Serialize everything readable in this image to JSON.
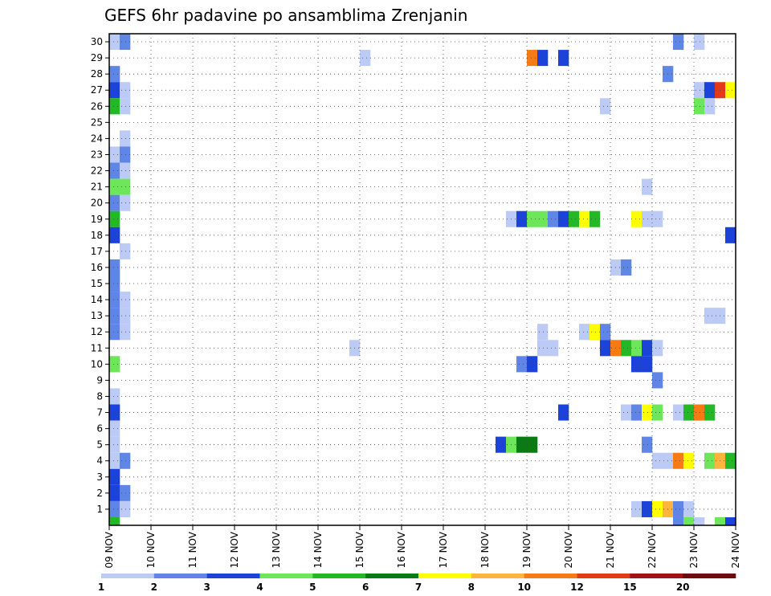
{
  "chart_data": {
    "type": "heatmap",
    "title": "GEFS 6hr padavine po ansamblima Zrenjanin",
    "xlabel": "",
    "ylabel": "",
    "x_tick_labels": [
      "09 NOV",
      "10 NOV",
      "11 NOV",
      "12 NOV",
      "13 NOV",
      "14 NOV",
      "15 NOV",
      "16 NOV",
      "17 NOV",
      "18 NOV",
      "19 NOV",
      "20 NOV",
      "21 NOV",
      "22 NOV",
      "23 NOV",
      "24 NOV"
    ],
    "y_tick_labels": [
      "1",
      "2",
      "3",
      "4",
      "5",
      "6",
      "7",
      "8",
      "9",
      "10",
      "11",
      "12",
      "13",
      "14",
      "15",
      "16",
      "17",
      "18",
      "19",
      "20",
      "21",
      "22",
      "23",
      "24",
      "25",
      "26",
      "27",
      "28",
      "29",
      "30"
    ],
    "x_unit": "6hr step since 09 NOV",
    "xlim": [
      0,
      60
    ],
    "ylim": [
      0,
      30
    ],
    "grid": true,
    "colorbar": {
      "levels": [
        "1",
        "2",
        "3",
        "4",
        "5",
        "6",
        "7",
        "8",
        "10",
        "12",
        "15",
        "20"
      ],
      "colors": [
        "#bccbf5",
        "#5f86e6",
        "#1c43d9",
        "#6ee65a",
        "#25b826",
        "#0a7a12",
        "#ffff00",
        "#ffb43c",
        "#f77b14",
        "#e23a16",
        "#a31212",
        "#6b0b0b"
      ]
    },
    "cells": [
      {
        "x": 0,
        "y": 30,
        "c": 0
      },
      {
        "x": 1,
        "y": 30,
        "c": 1
      },
      {
        "x": 54,
        "y": 30,
        "c": 1
      },
      {
        "x": 56,
        "y": 30,
        "c": 0
      },
      {
        "x": 24,
        "y": 29,
        "c": 0
      },
      {
        "x": 40,
        "y": 29,
        "c": 8
      },
      {
        "x": 41,
        "y": 29,
        "c": 2
      },
      {
        "x": 43,
        "y": 29,
        "c": 2
      },
      {
        "x": 0,
        "y": 28,
        "c": 1
      },
      {
        "x": 53,
        "y": 28,
        "c": 1
      },
      {
        "x": 0,
        "y": 27,
        "c": 2
      },
      {
        "x": 1,
        "y": 27,
        "c": 0
      },
      {
        "x": 56,
        "y": 27,
        "c": 0
      },
      {
        "x": 57,
        "y": 27,
        "c": 2
      },
      {
        "x": 58,
        "y": 27,
        "c": 9
      },
      {
        "x": 59,
        "y": 27,
        "c": 6
      },
      {
        "x": 0,
        "y": 26,
        "c": 4
      },
      {
        "x": 1,
        "y": 26,
        "c": 0
      },
      {
        "x": 47,
        "y": 26,
        "c": 0
      },
      {
        "x": 56,
        "y": 26,
        "c": 3
      },
      {
        "x": 57,
        "y": 26,
        "c": 0
      },
      {
        "x": 1,
        "y": 24,
        "c": 0
      },
      {
        "x": 0,
        "y": 23,
        "c": 0
      },
      {
        "x": 1,
        "y": 23,
        "c": 1
      },
      {
        "x": 0,
        "y": 22,
        "c": 1
      },
      {
        "x": 1,
        "y": 22,
        "c": 0
      },
      {
        "x": 0,
        "y": 21,
        "c": 3
      },
      {
        "x": 1,
        "y": 21,
        "c": 3
      },
      {
        "x": 51,
        "y": 21,
        "c": 0
      },
      {
        "x": 0,
        "y": 20,
        "c": 1
      },
      {
        "x": 1,
        "y": 20,
        "c": 0
      },
      {
        "x": 0,
        "y": 19,
        "c": 4
      },
      {
        "x": 38,
        "y": 19,
        "c": 0
      },
      {
        "x": 39,
        "y": 19,
        "c": 2
      },
      {
        "x": 40,
        "y": 19,
        "c": 3
      },
      {
        "x": 41,
        "y": 19,
        "c": 3
      },
      {
        "x": 42,
        "y": 19,
        "c": 1
      },
      {
        "x": 43,
        "y": 19,
        "c": 2
      },
      {
        "x": 44,
        "y": 19,
        "c": 4
      },
      {
        "x": 45,
        "y": 19,
        "c": 6
      },
      {
        "x": 46,
        "y": 19,
        "c": 4
      },
      {
        "x": 50,
        "y": 19,
        "c": 6
      },
      {
        "x": 51,
        "y": 19,
        "c": 0
      },
      {
        "x": 52,
        "y": 19,
        "c": 0
      },
      {
        "x": 0,
        "y": 18,
        "c": 2
      },
      {
        "x": 59,
        "y": 18,
        "c": 2
      },
      {
        "x": 1,
        "y": 17,
        "c": 0
      },
      {
        "x": 0,
        "y": 16,
        "c": 1
      },
      {
        "x": 48,
        "y": 16,
        "c": 0
      },
      {
        "x": 49,
        "y": 16,
        "c": 1
      },
      {
        "x": 0,
        "y": 15,
        "c": 1
      },
      {
        "x": 0,
        "y": 14,
        "c": 1
      },
      {
        "x": 1,
        "y": 14,
        "c": 0
      },
      {
        "x": 0,
        "y": 13,
        "c": 1
      },
      {
        "x": 1,
        "y": 13,
        "c": 0
      },
      {
        "x": 57,
        "y": 13,
        "c": 0
      },
      {
        "x": 58,
        "y": 13,
        "c": 0
      },
      {
        "x": 0,
        "y": 12,
        "c": 1
      },
      {
        "x": 1,
        "y": 12,
        "c": 0
      },
      {
        "x": 41,
        "y": 12,
        "c": 0
      },
      {
        "x": 45,
        "y": 12,
        "c": 0
      },
      {
        "x": 46,
        "y": 12,
        "c": 6
      },
      {
        "x": 47,
        "y": 12,
        "c": 1
      },
      {
        "x": 23,
        "y": 11,
        "c": 0
      },
      {
        "x": 41,
        "y": 11,
        "c": 0
      },
      {
        "x": 42,
        "y": 11,
        "c": 0
      },
      {
        "x": 47,
        "y": 11,
        "c": 2
      },
      {
        "x": 48,
        "y": 11,
        "c": 8
      },
      {
        "x": 49,
        "y": 11,
        "c": 4
      },
      {
        "x": 50,
        "y": 11,
        "c": 3
      },
      {
        "x": 51,
        "y": 11,
        "c": 2
      },
      {
        "x": 52,
        "y": 11,
        "c": 0
      },
      {
        "x": 0,
        "y": 10,
        "c": 3
      },
      {
        "x": 39,
        "y": 10,
        "c": 1
      },
      {
        "x": 40,
        "y": 10,
        "c": 2
      },
      {
        "x": 50,
        "y": 10,
        "c": 2
      },
      {
        "x": 51,
        "y": 10,
        "c": 2
      },
      {
        "x": 52,
        "y": 9,
        "c": 1
      },
      {
        "x": 0,
        "y": 8,
        "c": 0
      },
      {
        "x": 0,
        "y": 7,
        "c": 2
      },
      {
        "x": 43,
        "y": 7,
        "c": 2
      },
      {
        "x": 49,
        "y": 7,
        "c": 0
      },
      {
        "x": 50,
        "y": 7,
        "c": 1
      },
      {
        "x": 51,
        "y": 7,
        "c": 6
      },
      {
        "x": 52,
        "y": 7,
        "c": 3
      },
      {
        "x": 54,
        "y": 7,
        "c": 0
      },
      {
        "x": 55,
        "y": 7,
        "c": 4
      },
      {
        "x": 56,
        "y": 7,
        "c": 8
      },
      {
        "x": 57,
        "y": 7,
        "c": 4
      },
      {
        "x": 0,
        "y": 6,
        "c": 0
      },
      {
        "x": 0,
        "y": 5,
        "c": 0
      },
      {
        "x": 37,
        "y": 5,
        "c": 2
      },
      {
        "x": 38,
        "y": 5,
        "c": 3
      },
      {
        "x": 39,
        "y": 5,
        "c": 5
      },
      {
        "x": 40,
        "y": 5,
        "c": 5
      },
      {
        "x": 51,
        "y": 5,
        "c": 1
      },
      {
        "x": 0,
        "y": 4,
        "c": 0
      },
      {
        "x": 1,
        "y": 4,
        "c": 1
      },
      {
        "x": 52,
        "y": 4,
        "c": 0
      },
      {
        "x": 53,
        "y": 4,
        "c": 0
      },
      {
        "x": 54,
        "y": 4,
        "c": 8
      },
      {
        "x": 55,
        "y": 4,
        "c": 6
      },
      {
        "x": 57,
        "y": 4,
        "c": 3
      },
      {
        "x": 58,
        "y": 4,
        "c": 7
      },
      {
        "x": 59,
        "y": 4,
        "c": 4
      },
      {
        "x": 0,
        "y": 3,
        "c": 2
      },
      {
        "x": 0,
        "y": 2,
        "c": 2
      },
      {
        "x": 1,
        "y": 2,
        "c": 1
      },
      {
        "x": 0,
        "y": 1,
        "c": 1
      },
      {
        "x": 1,
        "y": 1,
        "c": 0
      },
      {
        "x": 50,
        "y": 1,
        "c": 0
      },
      {
        "x": 51,
        "y": 1,
        "c": 2
      },
      {
        "x": 52,
        "y": 1,
        "c": 6
      },
      {
        "x": 53,
        "y": 1,
        "c": 7
      },
      {
        "x": 54,
        "y": 1,
        "c": 1
      },
      {
        "x": 55,
        "y": 1,
        "c": 0
      },
      {
        "x": 0,
        "y": 0,
        "c": 4
      },
      {
        "x": 54,
        "y": 0,
        "c": 1
      },
      {
        "x": 55,
        "y": 0,
        "c": 3
      },
      {
        "x": 56,
        "y": 0,
        "c": 0
      },
      {
        "x": 58,
        "y": 0,
        "c": 3
      },
      {
        "x": 59,
        "y": 0,
        "c": 2
      }
    ]
  }
}
